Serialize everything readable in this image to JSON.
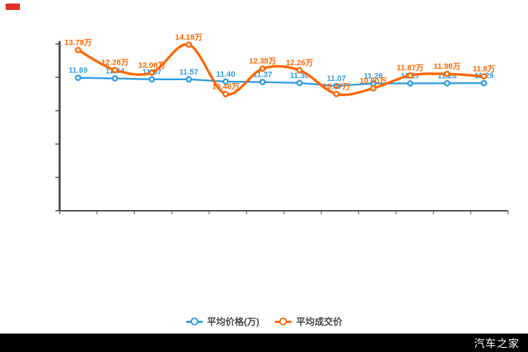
{
  "page": {
    "background": "#ffffff"
  },
  "badge": {
    "color": "#e03024"
  },
  "watermark": {
    "text": "汽车之家",
    "bar_color": "#000000",
    "text_color": "#ffffff"
  },
  "legend": {
    "items": [
      {
        "label": "平均价格(万)",
        "color": "#2f9ce4"
      },
      {
        "label": "平均成交价",
        "color": "#ff6600"
      }
    ]
  },
  "chart_data": {
    "type": "line",
    "title": "",
    "xlabel": "",
    "ylabel": "",
    "x_tick_labels_visible": false,
    "y_tick_labels_visible": false,
    "grid": false,
    "legend_position": "bottom-center",
    "axis_color": "#474747",
    "categories": [
      "1",
      "2",
      "3",
      "4",
      "5",
      "6",
      "7",
      "8",
      "9",
      "10",
      "11",
      "12"
    ],
    "ylim": [
      1.7,
      14.5
    ],
    "series": [
      {
        "name": "平均价格(万)",
        "color": "#2f9ce4",
        "smooth": false,
        "marker": "donut",
        "values": [
          11.69,
          11.64,
          11.57,
          11.57,
          11.4,
          11.37,
          11.3,
          11.07,
          11.26,
          11.27,
          11.28,
          11.29
        ],
        "labels": [
          "11.69",
          "11.64",
          "11.57",
          "11.57",
          "11.40",
          "11.37",
          "11.30",
          "11.07",
          "11.26",
          "11.27",
          "11.28",
          "11.29"
        ]
      },
      {
        "name": "平均成交价",
        "color": "#ff6600",
        "smooth": true,
        "marker": "donut",
        "values": [
          13.78,
          12.28,
          12.08,
          14.18,
          10.46,
          12.38,
          12.26,
          10.47,
          10.9,
          11.87,
          11.98,
          11.8
        ],
        "labels": [
          "13.78万",
          "12.28万",
          "12.08万",
          "14.18万",
          "10.46万",
          "12.38万",
          "12.26万",
          "10.47万",
          "10.90万",
          "11.87万",
          "11.98万",
          "11.8万"
        ]
      }
    ]
  }
}
